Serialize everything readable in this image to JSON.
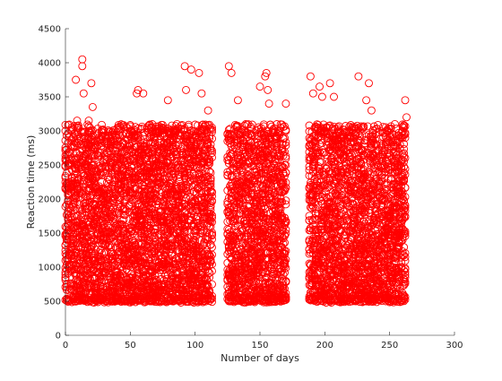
{
  "chart_data": {
    "type": "scatter",
    "title": "",
    "xlabel": "Number of days",
    "ylabel": "Reaction time (ms)",
    "xlim": [
      0,
      300
    ],
    "ylim": [
      0,
      4500
    ],
    "xticks": [
      0,
      50,
      100,
      150,
      200,
      250,
      300
    ],
    "yticks": [
      0,
      500,
      1000,
      1500,
      2000,
      2500,
      3000,
      3500,
      4000,
      4500
    ],
    "grid": false,
    "legend": "none",
    "marker": "circle-open",
    "marker_color": "#ff0000",
    "days": [
      0,
      1,
      2,
      3,
      4,
      5,
      6,
      7,
      8,
      9,
      10,
      11,
      12,
      13,
      14,
      15,
      16,
      17,
      18,
      19,
      20,
      21,
      22,
      23,
      24,
      25,
      26,
      27,
      28,
      29,
      30,
      31,
      32,
      33,
      34,
      35,
      36,
      37,
      38,
      39,
      40,
      41,
      42,
      43,
      44,
      45,
      46,
      47,
      48,
      49,
      50,
      51,
      52,
      53,
      54,
      55,
      56,
      57,
      58,
      59,
      60,
      61,
      62,
      63,
      64,
      65,
      66,
      67,
      68,
      69,
      70,
      71,
      72,
      73,
      74,
      75,
      76,
      77,
      78,
      79,
      80,
      81,
      82,
      83,
      84,
      85,
      86,
      87,
      88,
      89,
      90,
      91,
      92,
      93,
      94,
      95,
      96,
      97,
      98,
      99,
      100,
      101,
      102,
      103,
      104,
      105,
      106,
      107,
      108,
      109,
      110,
      111,
      112,
      113,
      125,
      126,
      127,
      128,
      129,
      130,
      131,
      132,
      133,
      134,
      135,
      136,
      137,
      138,
      139,
      140,
      141,
      142,
      143,
      144,
      145,
      146,
      147,
      148,
      149,
      150,
      151,
      152,
      153,
      154,
      155,
      156,
      157,
      158,
      159,
      160,
      161,
      162,
      163,
      164,
      165,
      166,
      167,
      168,
      169,
      170,
      188,
      189,
      190,
      191,
      192,
      193,
      194,
      195,
      196,
      197,
      198,
      199,
      200,
      201,
      202,
      203,
      204,
      205,
      206,
      207,
      208,
      209,
      210,
      211,
      212,
      213,
      214,
      215,
      216,
      217,
      218,
      219,
      220,
      221,
      222,
      223,
      224,
      225,
      226,
      227,
      228,
      229,
      230,
      231,
      232,
      233,
      234,
      235,
      236,
      237,
      238,
      239,
      240,
      241,
      242,
      243,
      244,
      245,
      246,
      247,
      248,
      249,
      250,
      251,
      252,
      253,
      254,
      255,
      256,
      257,
      258,
      259,
      260,
      261,
      262
    ],
    "per_day_range": [
      500,
      3100
    ],
    "outliers": [
      {
        "x": 0,
        "y": 3000
      },
      {
        "x": 8,
        "y": 3750
      },
      {
        "x": 9,
        "y": 3150
      },
      {
        "x": 13,
        "y": 4050
      },
      {
        "x": 13,
        "y": 3950
      },
      {
        "x": 14,
        "y": 3550
      },
      {
        "x": 18,
        "y": 3150
      },
      {
        "x": 20,
        "y": 3700
      },
      {
        "x": 21,
        "y": 3350
      },
      {
        "x": 55,
        "y": 3550
      },
      {
        "x": 56,
        "y": 3600
      },
      {
        "x": 60,
        "y": 3550
      },
      {
        "x": 79,
        "y": 3450
      },
      {
        "x": 92,
        "y": 3950
      },
      {
        "x": 93,
        "y": 3600
      },
      {
        "x": 97,
        "y": 3900
      },
      {
        "x": 103,
        "y": 3850
      },
      {
        "x": 105,
        "y": 3550
      },
      {
        "x": 110,
        "y": 3300
      },
      {
        "x": 126,
        "y": 3950
      },
      {
        "x": 128,
        "y": 3850
      },
      {
        "x": 133,
        "y": 3450
      },
      {
        "x": 150,
        "y": 3650
      },
      {
        "x": 154,
        "y": 3800
      },
      {
        "x": 155,
        "y": 3850
      },
      {
        "x": 156,
        "y": 3600
      },
      {
        "x": 157,
        "y": 3400
      },
      {
        "x": 170,
        "y": 3400
      },
      {
        "x": 189,
        "y": 3800
      },
      {
        "x": 191,
        "y": 3550
      },
      {
        "x": 196,
        "y": 3650
      },
      {
        "x": 198,
        "y": 3500
      },
      {
        "x": 204,
        "y": 3700
      },
      {
        "x": 207,
        "y": 3500
      },
      {
        "x": 226,
        "y": 3800
      },
      {
        "x": 232,
        "y": 3450
      },
      {
        "x": 234,
        "y": 3700
      },
      {
        "x": 236,
        "y": 3300
      },
      {
        "x": 262,
        "y": 3450
      },
      {
        "x": 263,
        "y": 3200
      }
    ]
  }
}
